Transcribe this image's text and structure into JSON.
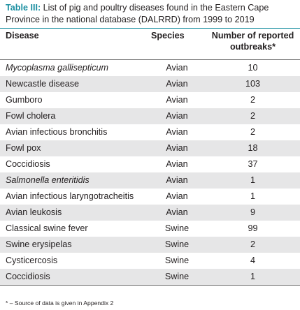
{
  "table": {
    "label": "Table III:",
    "caption": " List of pig and poultry diseases found in the Eastern Cape Province in the national database (DALRRD) from 1999 to 2019",
    "headers": {
      "disease": "Disease",
      "species": "Species",
      "outbreaks": "Number of reported outbreaks*"
    },
    "rows": [
      {
        "disease": "Mycoplasma gallisepticum",
        "italic": true,
        "species": "Avian",
        "outbreaks": "10"
      },
      {
        "disease": "Newcastle disease",
        "italic": false,
        "species": "Avian",
        "outbreaks": "103"
      },
      {
        "disease": "Gumboro",
        "italic": false,
        "species": "Avian",
        "outbreaks": "2"
      },
      {
        "disease": "Fowl cholera",
        "italic": false,
        "species": "Avian",
        "outbreaks": "2"
      },
      {
        "disease": "Avian infectious bronchitis",
        "italic": false,
        "species": "Avian",
        "outbreaks": "2"
      },
      {
        "disease": "Fowl pox",
        "italic": false,
        "species": "Avian",
        "outbreaks": "18"
      },
      {
        "disease": "Coccidiosis",
        "italic": false,
        "species": "Avian",
        "outbreaks": "37"
      },
      {
        "disease": "Salmonella enteritidis",
        "italic": true,
        "species": "Avian",
        "outbreaks": "1"
      },
      {
        "disease": "Avian infectious laryngotracheitis",
        "italic": false,
        "species": "Avian",
        "outbreaks": "1"
      },
      {
        "disease": "Avian leukosis",
        "italic": false,
        "species": "Avian",
        "outbreaks": "9"
      },
      {
        "disease": "Classical swine fever",
        "italic": false,
        "species": "Swine",
        "outbreaks": "99"
      },
      {
        "disease": "Swine erysipelas",
        "italic": false,
        "species": "Swine",
        "outbreaks": "2"
      },
      {
        "disease": "Cysticercosis",
        "italic": false,
        "species": "Swine",
        "outbreaks": "4"
      },
      {
        "disease": "Coccidiosis",
        "italic": false,
        "species": "Swine",
        "outbreaks": "1"
      }
    ],
    "footnote": "* – Source of data is given in Appendix 2"
  },
  "colors": {
    "accent": "#1a8fa1",
    "row_shade": "#e6e6e7",
    "text": "#231f20"
  }
}
